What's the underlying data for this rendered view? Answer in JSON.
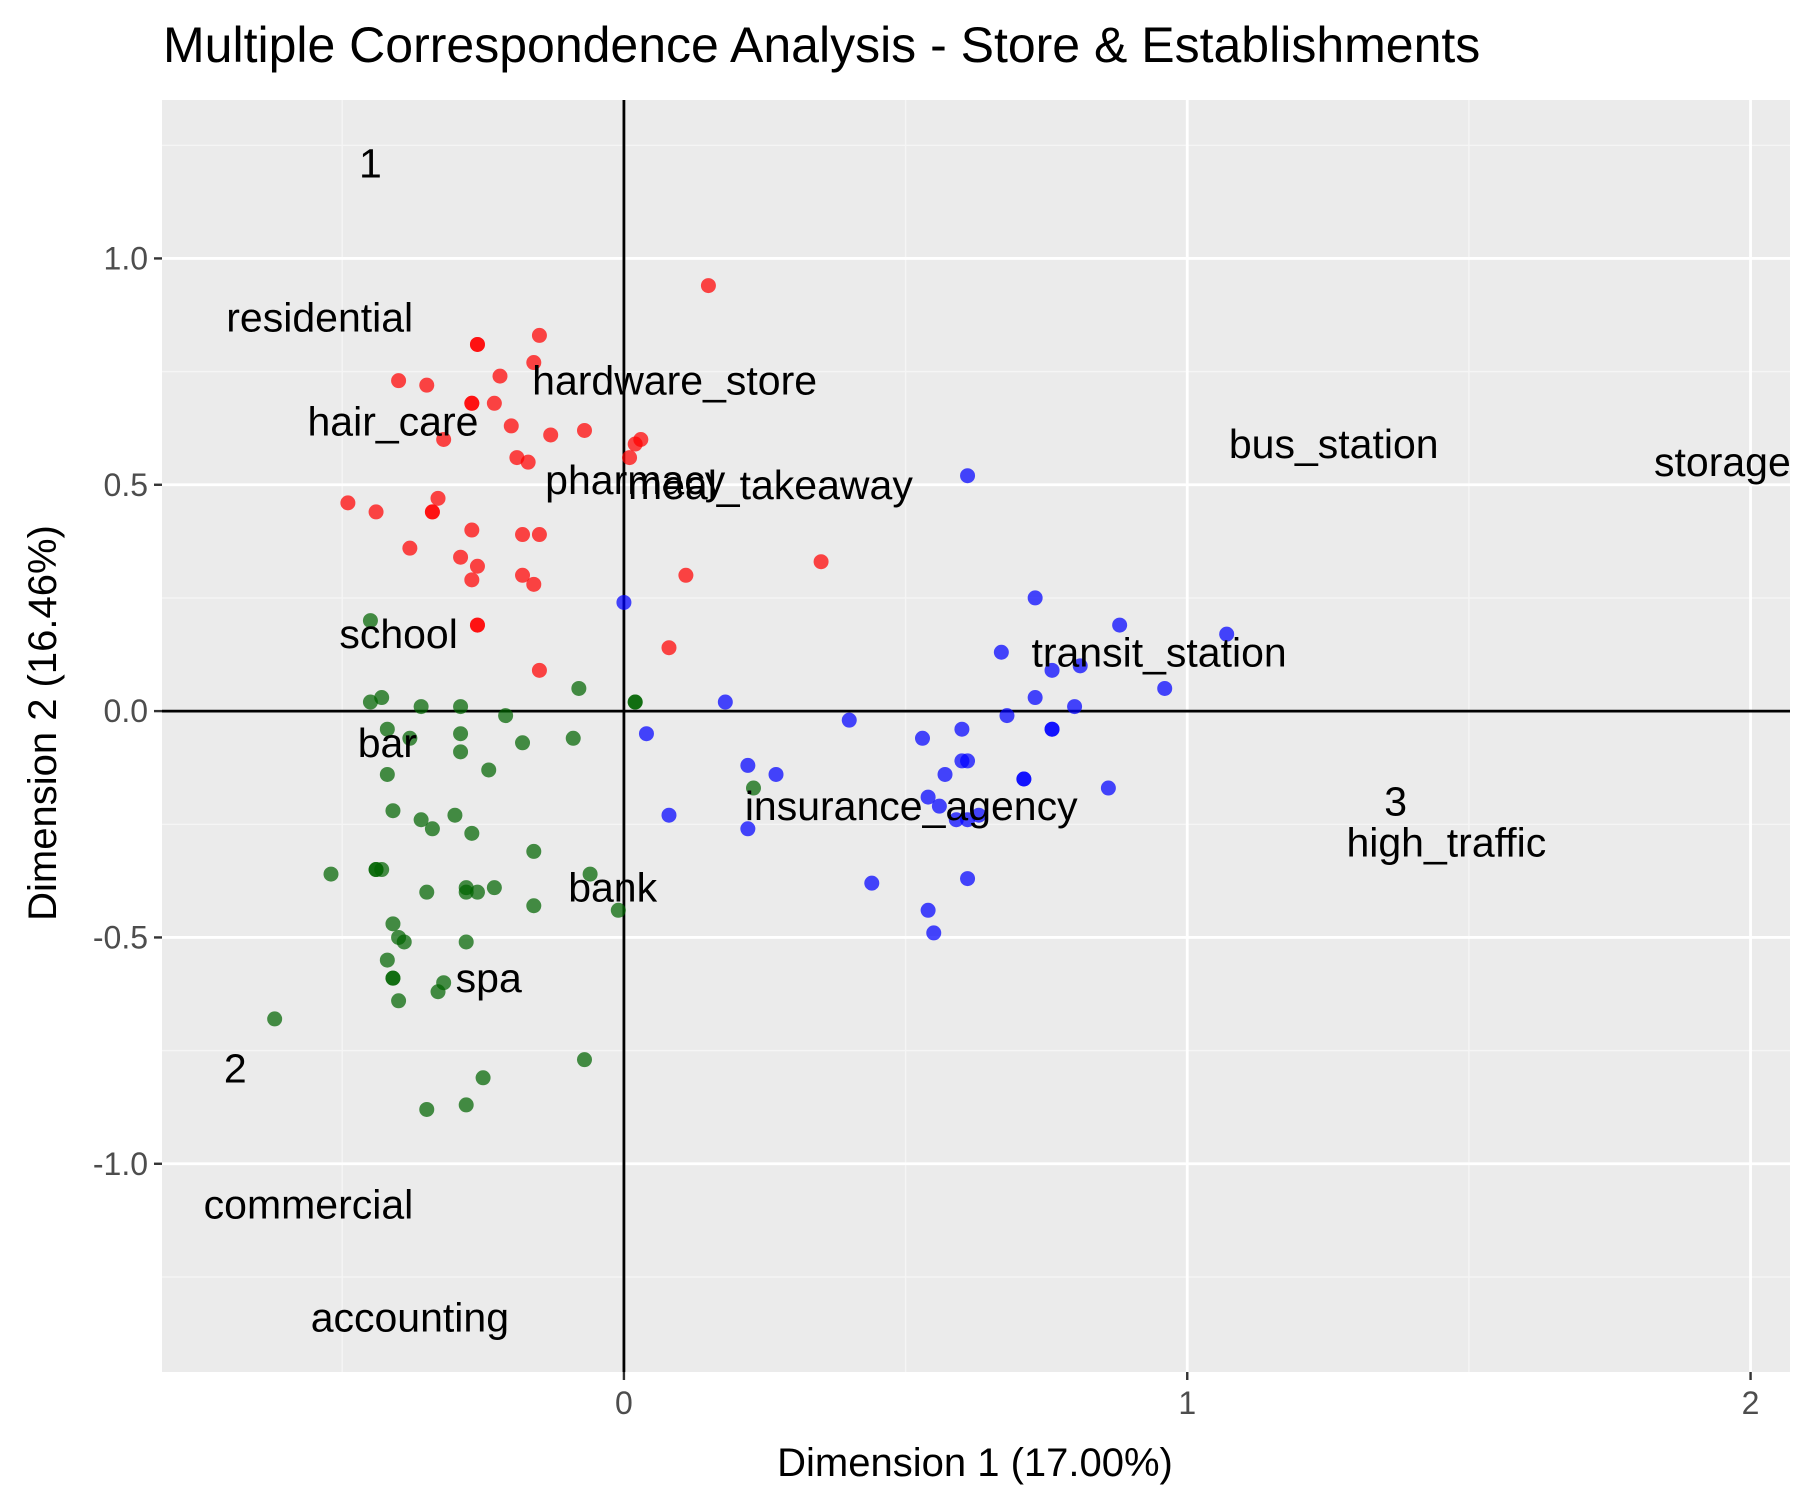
{
  "chart_data": {
    "type": "scatter",
    "title": "Multiple Correspondence Analysis - Store & Establishments",
    "xlabel": "Dimension 1 (17.00%)",
    "ylabel": "Dimension 2 (16.46%)",
    "xlim": [
      -0.82,
      2.07
    ],
    "ylim": [
      -1.46,
      1.35
    ],
    "x_ticks": [
      {
        "value": 0,
        "label": "0"
      },
      {
        "value": 1,
        "label": "1"
      },
      {
        "value": 2,
        "label": "2"
      }
    ],
    "y_ticks": [
      {
        "value": 1.0,
        "label": "1.0"
      },
      {
        "value": 0.5,
        "label": "0.5"
      },
      {
        "value": 0.0,
        "label": "0.0"
      },
      {
        "value": -0.5,
        "label": "-0.5"
      },
      {
        "value": -1.0,
        "label": "-1.0"
      }
    ],
    "grid": true,
    "reference_lines": {
      "x": 0,
      "y": 0
    },
    "colors": {
      "panel_background": "#ebebeb",
      "grid_major": "#ffffff",
      "grid_minor": "#f5f5f5",
      "reference_line": "#000000",
      "cluster_1": "#ff0000",
      "cluster_2": "#006400",
      "cluster_3": "#0000ff"
    },
    "series": [
      {
        "cluster": "1",
        "color": "#ff0000",
        "points": [
          [
            0.15,
            0.94
          ],
          [
            -0.26,
            0.81
          ],
          [
            -0.26,
            0.81
          ],
          [
            -0.15,
            0.83
          ],
          [
            -0.16,
            0.77
          ],
          [
            -0.4,
            0.73
          ],
          [
            -0.35,
            0.72
          ],
          [
            -0.22,
            0.74
          ],
          [
            -0.27,
            0.68
          ],
          [
            -0.27,
            0.68
          ],
          [
            -0.23,
            0.68
          ],
          [
            -0.2,
            0.63
          ],
          [
            -0.13,
            0.61
          ],
          [
            -0.07,
            0.62
          ],
          [
            -0.32,
            0.6
          ],
          [
            -0.19,
            0.56
          ],
          [
            -0.17,
            0.55
          ],
          [
            0.03,
            0.6
          ],
          [
            0.02,
            0.59
          ],
          [
            0.01,
            0.56
          ],
          [
            -0.49,
            0.46
          ],
          [
            -0.44,
            0.44
          ],
          [
            -0.33,
            0.47
          ],
          [
            -0.34,
            0.44
          ],
          [
            -0.34,
            0.44
          ],
          [
            -0.27,
            0.4
          ],
          [
            -0.18,
            0.39
          ],
          [
            -0.15,
            0.39
          ],
          [
            -0.38,
            0.36
          ],
          [
            -0.29,
            0.34
          ],
          [
            -0.26,
            0.32
          ],
          [
            -0.27,
            0.29
          ],
          [
            -0.18,
            0.3
          ],
          [
            -0.16,
            0.28
          ],
          [
            0.11,
            0.3
          ],
          [
            0.35,
            0.33
          ],
          [
            -0.26,
            0.19
          ],
          [
            -0.26,
            0.19
          ],
          [
            0.08,
            0.14
          ],
          [
            -0.15,
            0.09
          ]
        ]
      },
      {
        "cluster": "2",
        "color": "#006400",
        "points": [
          [
            -0.45,
            0.2
          ],
          [
            -0.43,
            0.03
          ],
          [
            -0.45,
            0.02
          ],
          [
            -0.36,
            0.01
          ],
          [
            -0.29,
            0.01
          ],
          [
            -0.21,
            -0.01
          ],
          [
            -0.08,
            0.05
          ],
          [
            0.02,
            0.02
          ],
          [
            0.02,
            0.02
          ],
          [
            -0.42,
            -0.04
          ],
          [
            -0.38,
            -0.06
          ],
          [
            -0.29,
            -0.05
          ],
          [
            -0.18,
            -0.07
          ],
          [
            -0.09,
            -0.06
          ],
          [
            -0.29,
            -0.09
          ],
          [
            -0.42,
            -0.14
          ],
          [
            -0.24,
            -0.13
          ],
          [
            -0.41,
            -0.22
          ],
          [
            -0.36,
            -0.24
          ],
          [
            -0.3,
            -0.23
          ],
          [
            -0.34,
            -0.26
          ],
          [
            -0.27,
            -0.27
          ],
          [
            0.23,
            -0.17
          ],
          [
            -0.16,
            -0.31
          ],
          [
            -0.52,
            -0.36
          ],
          [
            -0.44,
            -0.35
          ],
          [
            -0.43,
            -0.35
          ],
          [
            -0.44,
            -0.35
          ],
          [
            -0.35,
            -0.4
          ],
          [
            -0.28,
            -0.39
          ],
          [
            -0.28,
            -0.4
          ],
          [
            -0.26,
            -0.4
          ],
          [
            -0.23,
            -0.39
          ],
          [
            -0.16,
            -0.43
          ],
          [
            -0.06,
            -0.36
          ],
          [
            -0.01,
            -0.44
          ],
          [
            -0.41,
            -0.47
          ],
          [
            -0.4,
            -0.5
          ],
          [
            -0.39,
            -0.51
          ],
          [
            -0.28,
            -0.51
          ],
          [
            -0.42,
            -0.55
          ],
          [
            -0.41,
            -0.59
          ],
          [
            -0.41,
            -0.59
          ],
          [
            -0.4,
            -0.64
          ],
          [
            -0.32,
            -0.6
          ],
          [
            -0.33,
            -0.62
          ],
          [
            -0.62,
            -0.68
          ],
          [
            -0.07,
            -0.77
          ],
          [
            -0.25,
            -0.81
          ],
          [
            -0.35,
            -0.88
          ],
          [
            -0.28,
            -0.87
          ]
        ]
      },
      {
        "cluster": "3",
        "color": "#0000ff",
        "points": [
          [
            0.61,
            0.52
          ],
          [
            0.0,
            0.24
          ],
          [
            0.73,
            0.25
          ],
          [
            0.88,
            0.19
          ],
          [
            1.07,
            0.17
          ],
          [
            0.67,
            0.13
          ],
          [
            0.76,
            0.09
          ],
          [
            0.81,
            0.1
          ],
          [
            0.73,
            0.03
          ],
          [
            0.96,
            0.05
          ],
          [
            0.18,
            0.02
          ],
          [
            0.8,
            0.01
          ],
          [
            0.68,
            -0.01
          ],
          [
            0.4,
            -0.02
          ],
          [
            0.04,
            -0.05
          ],
          [
            0.53,
            -0.06
          ],
          [
            0.6,
            -0.04
          ],
          [
            0.76,
            -0.04
          ],
          [
            0.76,
            -0.04
          ],
          [
            0.22,
            -0.12
          ],
          [
            0.27,
            -0.14
          ],
          [
            0.57,
            -0.14
          ],
          [
            0.6,
            -0.11
          ],
          [
            0.61,
            -0.11
          ],
          [
            0.71,
            -0.15
          ],
          [
            0.71,
            -0.15
          ],
          [
            0.54,
            -0.19
          ],
          [
            0.56,
            -0.21
          ],
          [
            0.59,
            -0.24
          ],
          [
            0.61,
            -0.24
          ],
          [
            0.63,
            -0.23
          ],
          [
            0.86,
            -0.17
          ],
          [
            0.08,
            -0.23
          ],
          [
            0.22,
            -0.26
          ],
          [
            0.44,
            -0.38
          ],
          [
            0.61,
            -0.37
          ],
          [
            0.54,
            -0.44
          ],
          [
            0.55,
            -0.49
          ]
        ]
      }
    ],
    "category_labels": [
      {
        "text": "1",
        "x": -0.45,
        "y": 1.21
      },
      {
        "text": "residential",
        "x": -0.54,
        "y": 0.87
      },
      {
        "text": "hardware_store",
        "x": 0.09,
        "y": 0.73
      },
      {
        "text": "hair_care",
        "x": -0.41,
        "y": 0.64
      },
      {
        "text": "bus_station",
        "x": 1.26,
        "y": 0.59
      },
      {
        "text": "storage",
        "x": 1.95,
        "y": 0.55
      },
      {
        "text": "pharmacy",
        "x": 0.02,
        "y": 0.51
      },
      {
        "text": "meal_takeaway",
        "x": 0.26,
        "y": 0.5
      },
      {
        "text": "school",
        "x": -0.4,
        "y": 0.17
      },
      {
        "text": "transit_station",
        "x": 0.95,
        "y": 0.13
      },
      {
        "text": "bar",
        "x": -0.42,
        "y": -0.07
      },
      {
        "text": "insurance_agency",
        "x": 0.51,
        "y": -0.21
      },
      {
        "text": "3",
        "x": 1.37,
        "y": -0.2
      },
      {
        "text": "high_traffic",
        "x": 1.46,
        "y": -0.29
      },
      {
        "text": "bank",
        "x": -0.02,
        "y": -0.39
      },
      {
        "text": "spa",
        "x": -0.24,
        "y": -0.59
      },
      {
        "text": "2",
        "x": -0.69,
        "y": -0.79
      },
      {
        "text": "commercial",
        "x": -0.56,
        "y": -1.09
      },
      {
        "text": "accounting",
        "x": -0.38,
        "y": -1.34
      }
    ]
  }
}
